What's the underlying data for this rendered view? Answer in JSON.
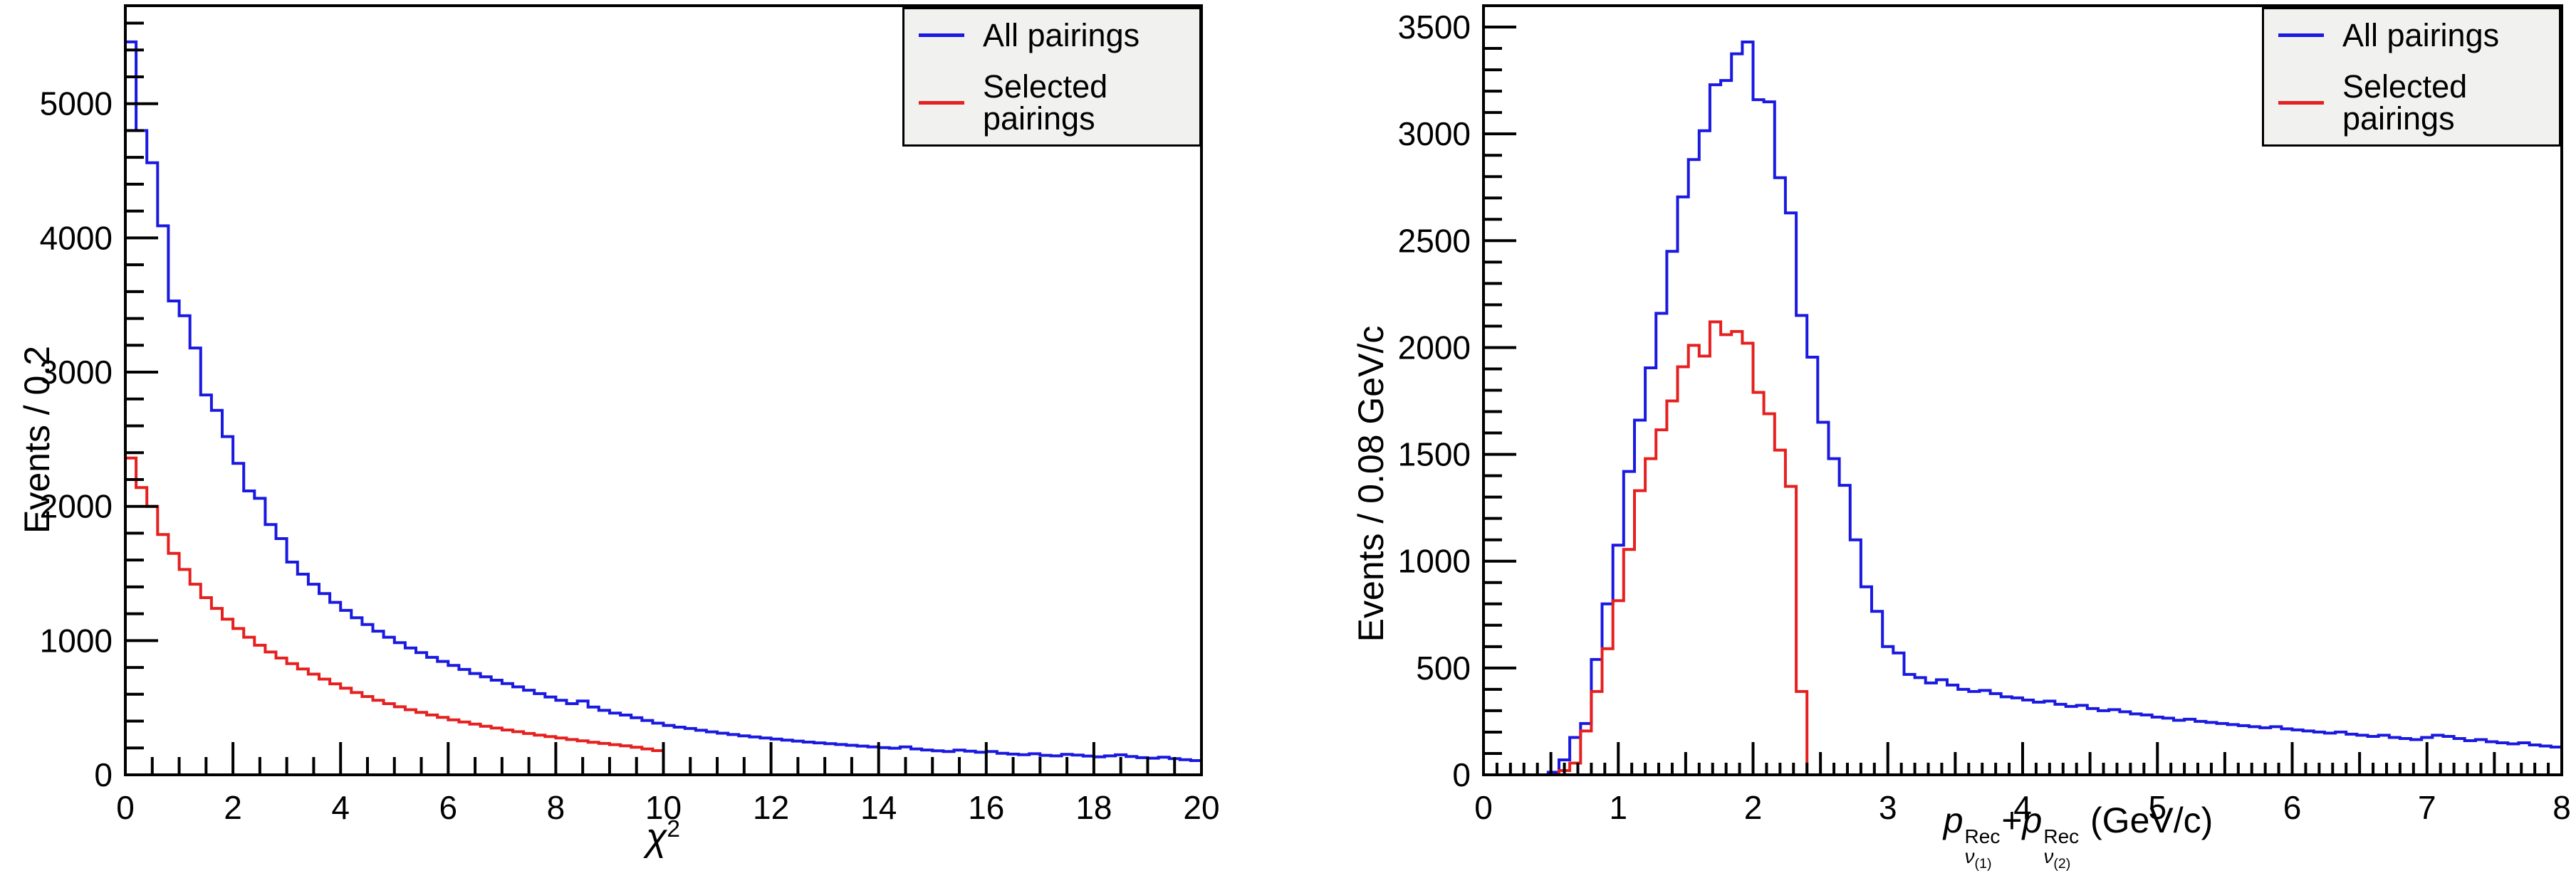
{
  "colors": {
    "all_pairings": "#1919e0",
    "selected_pairings": "#e61f1f",
    "axis": "#000000",
    "legend_bg": "#f1f1ef",
    "background": "#ffffff"
  },
  "legend": {
    "items": [
      {
        "label": "All pairings"
      },
      {
        "label": "Selected pairings"
      }
    ]
  },
  "labels": {
    "left_ytitle": "Events / 0.2",
    "right_ytitle": "Events / 0.08 GeV/c",
    "left_xtitle": {
      "base": "χ",
      "exp": "2"
    },
    "right_xtitle": {
      "p1": "p",
      "sup1": "Rec",
      "nu1": "ν",
      "idx1": "(1)",
      "plus": "+",
      "p2": "p",
      "sup2": "Rec",
      "nu2": "ν",
      "idx2": "(2)",
      "unit": " (GeV/c)"
    }
  },
  "chart_data": [
    {
      "type": "bar",
      "subtype": "step-histogram",
      "title": "",
      "xlabel": "chi^2",
      "ylabel": "Events / 0.2",
      "xlim": [
        0,
        20
      ],
      "ylim": [
        0,
        5730
      ],
      "x_major_ticks": [
        0,
        2,
        4,
        6,
        8,
        10,
        12,
        14,
        16,
        18,
        20
      ],
      "x_minor_step": 0.5,
      "y_major_ticks": [
        0,
        1000,
        2000,
        3000,
        4000,
        5000
      ],
      "y_minor_step": 200,
      "bin_width": 0.2,
      "grid": false,
      "legend_position": "top-right",
      "series": [
        {
          "name": "All pairings",
          "color": "#1919e0",
          "bin_start": 0,
          "values": [
            5460,
            4800,
            4560,
            4090,
            3530,
            3420,
            3180,
            2830,
            2715,
            2520,
            2320,
            2115,
            2060,
            1865,
            1760,
            1585,
            1495,
            1420,
            1350,
            1285,
            1225,
            1170,
            1120,
            1070,
            1025,
            985,
            945,
            910,
            875,
            845,
            815,
            785,
            755,
            730,
            705,
            680,
            655,
            630,
            605,
            580,
            555,
            530,
            550,
            505,
            480,
            460,
            445,
            425,
            405,
            385,
            368,
            355,
            345,
            332,
            320,
            310,
            300,
            290,
            282,
            274,
            266,
            258,
            251,
            244,
            238,
            232,
            226,
            220,
            214,
            208,
            203,
            198,
            208,
            193,
            185,
            179,
            174,
            184,
            176,
            168,
            174,
            160,
            154,
            150,
            157,
            145,
            141,
            152,
            147,
            140,
            134,
            141,
            149,
            137,
            128,
            124,
            131,
            121,
            113,
            106
          ]
        },
        {
          "name": "Selected pairings",
          "color": "#e61f1f",
          "bin_start": 0,
          "values": [
            2360,
            2140,
            2000,
            1790,
            1650,
            1530,
            1420,
            1320,
            1240,
            1160,
            1090,
            1025,
            965,
            915,
            870,
            828,
            788,
            750,
            713,
            678,
            645,
            613,
            583,
            555,
            530,
            507,
            485,
            465,
            446,
            428,
            410,
            394,
            378,
            362,
            348,
            334,
            321,
            308,
            296,
            285,
            274,
            263,
            253,
            243,
            234,
            225,
            216,
            205,
            193,
            180
          ]
        }
      ]
    },
    {
      "type": "bar",
      "subtype": "step-histogram",
      "title": "",
      "xlabel": "p_nu(1)^Rec + p_nu(2)^Rec (GeV/c)",
      "ylabel": "Events / 0.08 GeV/c",
      "xlim": [
        0,
        8
      ],
      "ylim": [
        0,
        3600
      ],
      "x_major_ticks": [
        0,
        1,
        2,
        3,
        4,
        5,
        6,
        7,
        8
      ],
      "x_minor_step": 0.1,
      "x_medium_step": 0.5,
      "y_major_ticks": [
        0,
        500,
        1000,
        1500,
        2000,
        2500,
        3000,
        3500
      ],
      "y_minor_step": 100,
      "bin_width": 0.08,
      "grid": false,
      "legend_position": "top-right",
      "series": [
        {
          "name": "All pairings",
          "color": "#1919e0",
          "bin_start": 0,
          "values": [
            0,
            0,
            0,
            0,
            0,
            0,
            12,
            70,
            175,
            240,
            540,
            800,
            1075,
            1420,
            1660,
            1905,
            2160,
            2450,
            2705,
            2880,
            3015,
            3230,
            3250,
            3375,
            3430,
            3160,
            3150,
            2795,
            2630,
            2150,
            1955,
            1650,
            1480,
            1355,
            1100,
            880,
            765,
            600,
            570,
            470,
            455,
            430,
            445,
            420,
            400,
            390,
            395,
            380,
            365,
            360,
            350,
            340,
            345,
            330,
            320,
            325,
            310,
            300,
            305,
            295,
            285,
            280,
            270,
            265,
            255,
            260,
            250,
            245,
            240,
            235,
            230,
            225,
            220,
            225,
            215,
            210,
            205,
            200,
            195,
            200,
            190,
            185,
            180,
            185,
            175,
            170,
            165,
            175,
            185,
            180,
            170,
            160,
            165,
            155,
            150,
            145,
            150,
            140,
            135,
            130
          ]
        },
        {
          "name": "Selected pairings",
          "color": "#e61f1f",
          "bin_start": 0,
          "values": [
            0,
            0,
            0,
            0,
            0,
            0,
            0,
            20,
            55,
            205,
            390,
            590,
            815,
            1055,
            1330,
            1480,
            1615,
            1750,
            1910,
            2010,
            1960,
            2120,
            2060,
            2075,
            2020,
            1790,
            1690,
            1520,
            1350,
            390
          ]
        }
      ]
    }
  ]
}
